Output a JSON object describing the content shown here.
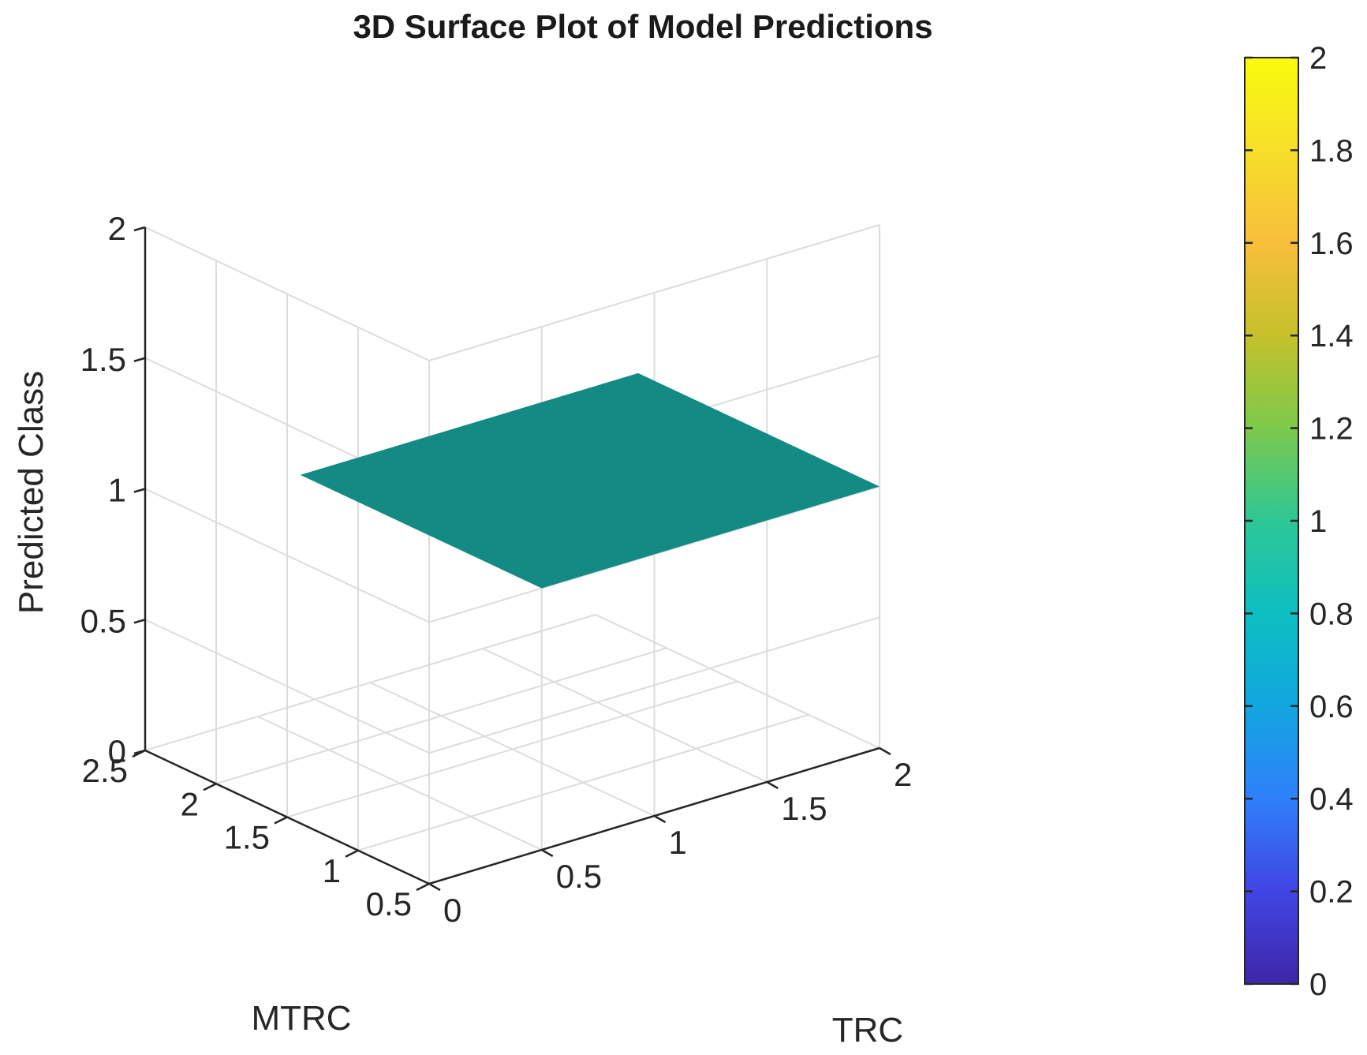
{
  "chart_data": {
    "type": "surface",
    "title": "3D Surface Plot of Model Predictions",
    "xlabel": "TRC",
    "ylabel": "MTRC",
    "zlabel": "Predicted Class",
    "xlim": [
      0,
      2
    ],
    "ylim": [
      0.5,
      2.5
    ],
    "zlim": [
      0,
      2
    ],
    "x_ticks": [
      "0",
      "0.5",
      "1",
      "1.5",
      "2"
    ],
    "y_ticks": [
      "0.5",
      "1",
      "1.5",
      "2",
      "2.5"
    ],
    "z_ticks": [
      "0",
      "0.5",
      "1",
      "1.5",
      "2"
    ],
    "surface": {
      "x_range": [
        0.5,
        2.0
      ],
      "y_range": [
        0.5,
        2.2
      ],
      "z_value": 1,
      "color": "#138b84"
    },
    "grid": true,
    "colorbar": {
      "limits": [
        0,
        2
      ],
      "ticks": [
        "0",
        "0.2",
        "0.4",
        "0.6",
        "0.8",
        "1",
        "1.2",
        "1.4",
        "1.6",
        "1.8",
        "2"
      ],
      "colormap": [
        "#3e26a8",
        "#4245e4",
        "#2f80fa",
        "#12a6e0",
        "#0dbfc1",
        "#2ec795",
        "#7cc94c",
        "#c5c12b",
        "#f8be3c",
        "#f7df2a",
        "#f9fb0e"
      ]
    }
  }
}
